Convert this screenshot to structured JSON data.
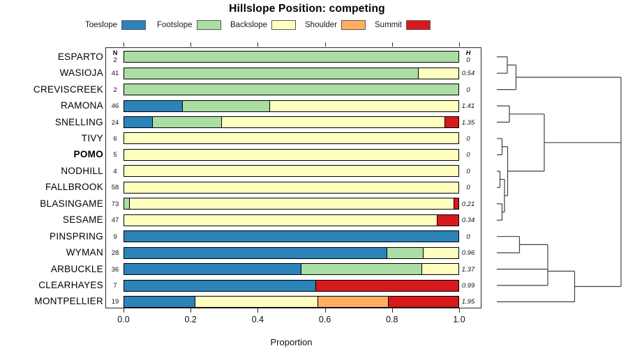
{
  "title": "Hillslope Position: competing",
  "colors": {
    "toeslope": "#2b83ba",
    "footslope": "#abdda4",
    "backslope": "#ffffbf",
    "shoulder": "#fdae61",
    "summit": "#d7191c"
  },
  "legend": {
    "items": [
      {
        "label": "Toeslope",
        "key": "toeslope"
      },
      {
        "label": "Footslope",
        "key": "footslope"
      },
      {
        "label": "Backslope",
        "key": "backslope"
      },
      {
        "label": "Shoulder",
        "key": "shoulder"
      },
      {
        "label": "Summit",
        "key": "summit"
      }
    ]
  },
  "table": {
    "n_header": "N",
    "h_header": "H"
  },
  "axis": {
    "label": "Proportion",
    "tick_labels": [
      "0.0",
      "0.2",
      "0.4",
      "0.6",
      "0.8",
      "1.0"
    ],
    "tick_values": [
      0,
      0.2,
      0.4,
      0.6,
      0.8,
      1.0
    ]
  },
  "chart_data": {
    "type": "stacked-bar-horizontal",
    "title": "Hillslope Position: competing",
    "xlabel": "Proportion",
    "xlim": [
      0,
      1
    ],
    "series_order": [
      "toeslope",
      "footslope",
      "backslope",
      "shoulder",
      "summit"
    ],
    "rows": [
      {
        "name": "ESPARTO",
        "n": 2,
        "h": "0",
        "bold": false,
        "segments": [
          [
            "footslope",
            1.0
          ]
        ]
      },
      {
        "name": "WASIOJA",
        "n": 41,
        "h": "0.54",
        "bold": false,
        "segments": [
          [
            "footslope",
            0.878
          ],
          [
            "backslope",
            0.122
          ]
        ]
      },
      {
        "name": "CREVISCREEK",
        "n": 2,
        "h": "0",
        "bold": false,
        "segments": [
          [
            "footslope",
            1.0
          ]
        ]
      },
      {
        "name": "RAMONA",
        "n": 46,
        "h": "1.41",
        "bold": false,
        "segments": [
          [
            "toeslope",
            0.174
          ],
          [
            "footslope",
            0.261
          ],
          [
            "backslope",
            0.565
          ]
        ]
      },
      {
        "name": "SNELLING",
        "n": 24,
        "h": "1.35",
        "bold": false,
        "segments": [
          [
            "toeslope",
            0.083
          ],
          [
            "footslope",
            0.208
          ],
          [
            "backslope",
            0.667
          ],
          [
            "summit",
            0.042
          ]
        ]
      },
      {
        "name": "TIVY",
        "n": 6,
        "h": "0",
        "bold": false,
        "segments": [
          [
            "backslope",
            1.0
          ]
        ]
      },
      {
        "name": "POMO",
        "n": 5,
        "h": "0",
        "bold": true,
        "segments": [
          [
            "backslope",
            1.0
          ]
        ]
      },
      {
        "name": "NODHILL",
        "n": 4,
        "h": "0",
        "bold": false,
        "segments": [
          [
            "backslope",
            1.0
          ]
        ]
      },
      {
        "name": "FALLBROOK",
        "n": 58,
        "h": "0",
        "bold": false,
        "segments": [
          [
            "backslope",
            1.0
          ]
        ]
      },
      {
        "name": "BLASINGAME",
        "n": 73,
        "h": "0.21",
        "bold": false,
        "segments": [
          [
            "footslope",
            0.014
          ],
          [
            "backslope",
            0.972
          ],
          [
            "summit",
            0.014
          ]
        ]
      },
      {
        "name": "SESAME",
        "n": 47,
        "h": "0.34",
        "bold": false,
        "segments": [
          [
            "backslope",
            0.936
          ],
          [
            "summit",
            0.064
          ]
        ]
      },
      {
        "name": "PINSPRING",
        "n": 9,
        "h": "0",
        "bold": false,
        "segments": [
          [
            "toeslope",
            1.0
          ]
        ]
      },
      {
        "name": "WYMAN",
        "n": 28,
        "h": "0.96",
        "bold": false,
        "segments": [
          [
            "toeslope",
            0.786
          ],
          [
            "footslope",
            0.107
          ],
          [
            "backslope",
            0.107
          ]
        ]
      },
      {
        "name": "ARBUCKLE",
        "n": 36,
        "h": "1.37",
        "bold": false,
        "segments": [
          [
            "toeslope",
            0.528
          ],
          [
            "footslope",
            0.361
          ],
          [
            "backslope",
            0.111
          ]
        ]
      },
      {
        "name": "CLEARHAYES",
        "n": 7,
        "h": "0.99",
        "bold": false,
        "segments": [
          [
            "toeslope",
            0.571
          ],
          [
            "summit",
            0.429
          ]
        ]
      },
      {
        "name": "MONTPELLIER",
        "n": 19,
        "h": "1.95",
        "bold": false,
        "segments": [
          [
            "toeslope",
            0.211
          ],
          [
            "backslope",
            0.368
          ],
          [
            "shoulder",
            0.211
          ],
          [
            "summit",
            0.21
          ]
        ]
      }
    ]
  },
  "dendrogram": {
    "hlines": [
      [
        712,
        727,
        81.7
      ],
      [
        712,
        727,
        105.2
      ],
      [
        712,
        739.5,
        128.6
      ],
      [
        712,
        730,
        152.1
      ],
      [
        712,
        730,
        175.5
      ],
      [
        712,
        719.5,
        199.0
      ],
      [
        712,
        719.5,
        222.4
      ],
      [
        712,
        716.5,
        245.9
      ],
      [
        712,
        716.5,
        269.3
      ],
      [
        712,
        719.5,
        292.8
      ],
      [
        712,
        719.5,
        316.2
      ],
      [
        712,
        744.5,
        339.7
      ],
      [
        712,
        744.5,
        363.1
      ],
      [
        712,
        785,
        386.6
      ],
      [
        712,
        785,
        410.0
      ],
      [
        712,
        823.5,
        433.5
      ],
      [
        727,
        739.5,
        93.4
      ],
      [
        739.5,
        890,
        111.0
      ],
      [
        730,
        780,
        163.8
      ],
      [
        719.5,
        727.5,
        210.7
      ],
      [
        716.5,
        723,
        257.6
      ],
      [
        719.5,
        723,
        304.5
      ],
      [
        723,
        727.5,
        281.0
      ],
      [
        727.5,
        780,
        245.9
      ],
      [
        780,
        890,
        204.8
      ],
      [
        744.5,
        785,
        351.4
      ],
      [
        785,
        823.5,
        389.5
      ],
      [
        823.5,
        890,
        411.5
      ]
    ],
    "vlines": [
      [
        727,
        81.7,
        105.2
      ],
      [
        739.5,
        93.4,
        128.6
      ],
      [
        730,
        152.1,
        175.5
      ],
      [
        719.5,
        199.0,
        222.4
      ],
      [
        716.5,
        245.9,
        269.3
      ],
      [
        719.5,
        292.8,
        316.2
      ],
      [
        723,
        257.6,
        304.5
      ],
      [
        727.5,
        210.7,
        281.0
      ],
      [
        780,
        163.8,
        245.9
      ],
      [
        744.5,
        339.7,
        363.1
      ],
      [
        785,
        351.4,
        410.0
      ],
      [
        823.5,
        389.5,
        433.5
      ],
      [
        890,
        111.0,
        411.5
      ]
    ]
  }
}
